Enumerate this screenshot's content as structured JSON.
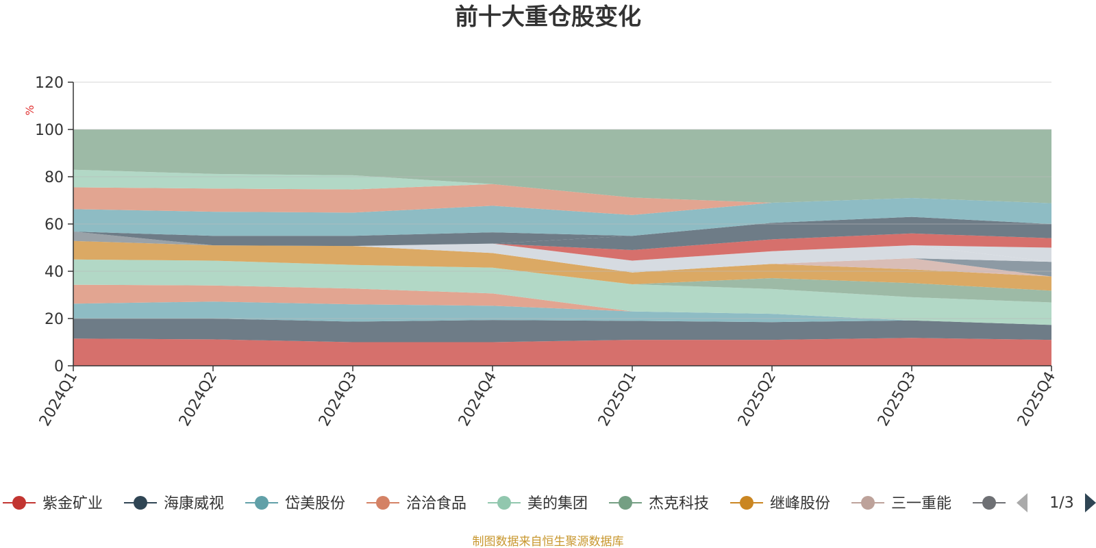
{
  "chart_data": {
    "type": "area",
    "stacked": true,
    "title": "前十大重仓股变化",
    "ylabel": "%",
    "ylim": [
      0,
      120
    ],
    "yticks": [
      0,
      20,
      40,
      60,
      80,
      100,
      120
    ],
    "grid": true,
    "categories": [
      "2024Q1",
      "2024Q2",
      "2024Q3",
      "2024Q4",
      "2025Q1",
      "2025Q2",
      "2025Q3",
      "2025Q4"
    ],
    "series": [
      {
        "name": "紫金矿业",
        "color": "#d6706c",
        "values": [
          11.5,
          11.2,
          10.0,
          10.0,
          11.0,
          11.0,
          11.8,
          11.0
        ]
      },
      {
        "name": "海康威视",
        "color": "#6e7c87",
        "values": [
          8.5,
          8.8,
          8.7,
          9.4,
          8.0,
          7.5,
          7.4,
          6.3
        ]
      },
      {
        "name": "岱美股份",
        "color": "#8ebcc4",
        "values": [
          6.3,
          7.2,
          7.3,
          6.0,
          4.0,
          3.5,
          0.0,
          0.0
        ]
      },
      {
        "name": "洽洽食品",
        "color": "#e2a591",
        "values": [
          8.0,
          6.8,
          6.7,
          5.2,
          0.0,
          0.0,
          0.0,
          0.0
        ]
      },
      {
        "name": "美的集团",
        "color": "#b2d8c6",
        "values": [
          10.7,
          10.5,
          10.0,
          10.9,
          11.5,
          10.5,
          9.8,
          9.5
        ]
      },
      {
        "name": "杰克科技",
        "color": "#9dbaa6",
        "values": [
          0.0,
          0.0,
          0.0,
          0.0,
          0.0,
          4.6,
          6.0,
          5.0
        ]
      },
      {
        "name": "继峰股份",
        "color": "#dba964",
        "values": [
          7.8,
          6.5,
          8.0,
          6.2,
          5.0,
          6.0,
          5.8,
          6.0
        ]
      },
      {
        "name": "三一重能",
        "color": "#d9bdb6",
        "values": [
          0.0,
          0.0,
          0.0,
          0.0,
          0.0,
          0.0,
          4.7,
          0.0
        ]
      },
      {
        "name": "",
        "color": "#8d9aa4",
        "values": [
          0.0,
          0.0,
          0.0,
          0.0,
          0.0,
          0.0,
          0.0,
          6.2
        ]
      },
      {
        "name": "",
        "color": "#d6dbe1",
        "values": [
          0.0,
          0.0,
          0.0,
          4.0,
          5.0,
          5.4,
          5.5,
          0.0
        ]
      },
      {
        "name": "",
        "color": "#d6dbe1",
        "values": [
          0.0,
          0.0,
          0.0,
          0.0,
          0.0,
          0.0,
          0.0,
          6.0
        ]
      },
      {
        "name": "",
        "color": "#d6706c",
        "values": [
          0.0,
          0.0,
          0.0,
          0.0,
          4.5,
          5.0,
          5.0,
          4.0
        ]
      },
      {
        "name": "",
        "color": "#6e7c87",
        "values": [
          0.0,
          0.0,
          0.0,
          0.0,
          6.0,
          7.0,
          7.0,
          6.0
        ]
      },
      {
        "name": "",
        "color": "#9aa2a8",
        "values": [
          4.0,
          0.0,
          0.0,
          0.0,
          0.0,
          0.0,
          0.0,
          0.0
        ]
      },
      {
        "name": "",
        "color": "#6e7c87",
        "values": [
          0.0,
          4.0,
          4.3,
          4.8,
          0.0,
          0.0,
          0.0,
          0.0
        ]
      },
      {
        "name": "",
        "color": "#8ebcc4",
        "values": [
          9.5,
          10.2,
          9.8,
          11.2,
          8.8,
          8.5,
          8.0,
          8.8
        ]
      },
      {
        "name": "",
        "color": "#e2a591",
        "values": [
          9.2,
          9.8,
          9.8,
          9.2,
          7.4,
          0.0,
          0.0,
          0.0
        ]
      },
      {
        "name": "",
        "color": "#b2d8c6",
        "values": [
          7.5,
          6.2,
          6.0,
          0.0,
          0.0,
          0.0,
          0.0,
          0.0
        ]
      },
      {
        "name": "",
        "color": "#9dbaa6",
        "values": [
          17.0,
          18.8,
          19.4,
          23.1,
          28.8,
          31.0,
          29.0,
          31.2
        ]
      }
    ],
    "legend": {
      "position": "bottom",
      "items": [
        {
          "name": "紫金矿业",
          "color": "#c23531"
        },
        {
          "name": "海康威视",
          "color": "#2f4554"
        },
        {
          "name": "岱美股份",
          "color": "#61a0a8"
        },
        {
          "name": "洽洽食品",
          "color": "#d48265"
        },
        {
          "name": "美的集团",
          "color": "#91c7ae"
        },
        {
          "name": "杰克科技",
          "color": "#749f83"
        },
        {
          "name": "继峰股份",
          "color": "#ca8622"
        },
        {
          "name": "三一重能",
          "color": "#bda29a"
        },
        {
          "name": "[",
          "color": "#6e7074"
        }
      ],
      "page": "1/3"
    },
    "source": "制图数据来自恒生聚源数据库"
  }
}
